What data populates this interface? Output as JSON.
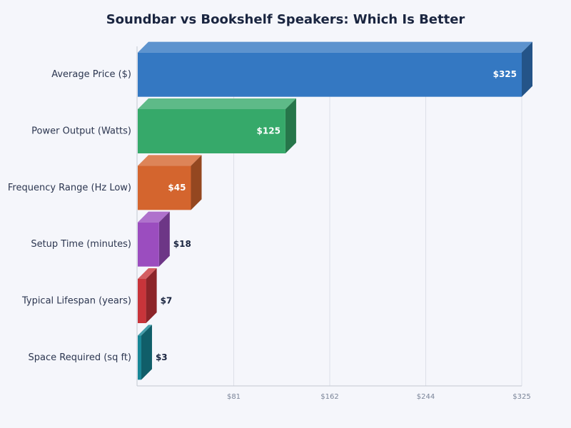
{
  "chart_data": {
    "type": "bar3d_horizontal",
    "title": "Soundbar vs Bookshelf Speakers: Which Is Better",
    "categories": [
      "Average Price ($)",
      "Power Output (Watts)",
      "Frequency Range (Hz Low)",
      "Setup Time (minutes)",
      "Typical Lifespan (years)",
      "Space Required (sq ft)"
    ],
    "values": [
      325,
      125,
      45,
      18,
      7,
      3
    ],
    "value_labels": [
      "$325",
      "$125",
      "$45",
      "$18",
      "$7",
      "$3"
    ],
    "colors": [
      "#3478c2",
      "#36a96a",
      "#d4652e",
      "#9b4dbf",
      "#c8343a",
      "#178696"
    ],
    "xlim": [
      0,
      325
    ],
    "xticks": [
      {
        "value": 81.25,
        "label": "$81"
      },
      {
        "value": 162.5,
        "label": "$162"
      },
      {
        "value": 243.75,
        "label": "$244"
      },
      {
        "value": 325,
        "label": "$325"
      }
    ],
    "grid": true
  }
}
